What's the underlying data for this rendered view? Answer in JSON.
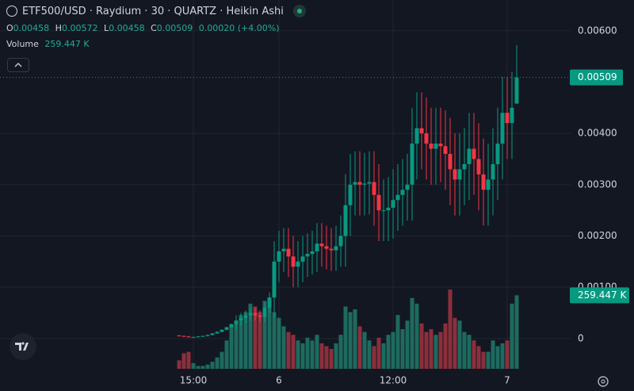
{
  "chart_data": {
    "type": "candlestick",
    "title": "ETF500/USD · Raydium · 30 · QUARTZ · Heikin Ashi",
    "ohlc_labels": [
      "O",
      "H",
      "L",
      "C"
    ],
    "change": "0.00020 (+4.00%)",
    "volume_title": "Volume",
    "up_color": "#089981",
    "down_color": "#f23645",
    "volume_up_color": "#1d6b5f",
    "volume_down_color": "#8c2f3c",
    "grid": true,
    "ylim": [
      -0.00059,
      0.0066
    ],
    "yticks": [
      {
        "value": 0,
        "label": "0"
      },
      {
        "value": 0.001,
        "label": "0.00100"
      },
      {
        "value": 0.002,
        "label": "0.00200"
      },
      {
        "value": 0.003,
        "label": "0.00300"
      },
      {
        "value": 0.004,
        "label": "0.00400"
      },
      {
        "value": 0.006,
        "label": "0.00600"
      }
    ],
    "categories": [
      null,
      null,
      null,
      "15:00",
      null,
      null,
      null,
      null,
      null,
      null,
      null,
      null,
      null,
      null,
      null,
      null,
      null,
      null,
      null,
      null,
      null,
      "6",
      null,
      null,
      null,
      null,
      null,
      null,
      null,
      null,
      null,
      null,
      null,
      null,
      null,
      null,
      null,
      null,
      null,
      null,
      null,
      null,
      null,
      null,
      null,
      "12:00",
      null,
      null,
      null,
      null,
      null,
      null,
      null,
      null,
      null,
      null,
      null,
      null,
      null,
      null,
      null,
      null,
      null,
      null,
      null,
      null,
      null,
      null,
      null,
      "7",
      null,
      null
    ],
    "open": [
      6e-05,
      5e-05,
      4e-05,
      3e-05,
      3e-05,
      4e-05,
      5e-05,
      7e-05,
      0.0001,
      0.00013,
      0.00017,
      0.00022,
      0.00028,
      0.00035,
      0.0004,
      0.00045,
      0.0005,
      0.00045,
      0.00042,
      0.0006,
      0.0008,
      0.0015,
      0.0017,
      0.00175,
      0.0016,
      0.0014,
      0.0015,
      0.0016,
      0.00165,
      0.0017,
      0.00185,
      0.0018,
      0.00175,
      0.00172,
      0.0018,
      0.002,
      0.0026,
      0.003,
      0.00305,
      0.003,
      0.00302,
      0.00305,
      0.0028,
      0.0025,
      0.0025,
      0.00255,
      0.0027,
      0.0028,
      0.0029,
      0.003,
      0.0038,
      0.0041,
      0.004,
      0.0038,
      0.0037,
      0.0038,
      0.00375,
      0.0036,
      0.0033,
      0.0031,
      0.0033,
      0.0034,
      0.0037,
      0.0035,
      0.0032,
      0.0029,
      0.0031,
      0.0034,
      0.0038,
      0.0044,
      0.0042,
      0.00458
    ],
    "high": [
      7e-05,
      6e-05,
      5e-05,
      4e-05,
      5e-05,
      6e-05,
      8e-05,
      0.00011,
      0.00014,
      0.00018,
      0.00023,
      0.00029,
      0.00045,
      0.0005,
      0.00055,
      0.0006,
      0.0006,
      0.00055,
      0.0007,
      0.0009,
      0.0019,
      0.0021,
      0.00215,
      0.00215,
      0.002,
      0.0019,
      0.002,
      0.00205,
      0.0021,
      0.00225,
      0.00225,
      0.0022,
      0.00215,
      0.0022,
      0.0024,
      0.0032,
      0.0036,
      0.00365,
      0.00365,
      0.00362,
      0.00365,
      0.00365,
      0.0034,
      0.0031,
      0.00315,
      0.0033,
      0.0034,
      0.0035,
      0.0036,
      0.0045,
      0.0048,
      0.0048,
      0.0047,
      0.0045,
      0.0045,
      0.0045,
      0.00445,
      0.0043,
      0.004,
      0.004,
      0.0041,
      0.0044,
      0.0044,
      0.0042,
      0.0039,
      0.0038,
      0.0041,
      0.0045,
      0.0051,
      0.0051,
      0.0052,
      0.00572
    ],
    "low": [
      4e-05,
      3e-05,
      2e-05,
      2e-05,
      2e-05,
      3e-05,
      4e-05,
      6e-05,
      9e-05,
      0.00012,
      0.00016,
      0.00021,
      0.00018,
      0.00025,
      0.0003,
      0.00035,
      0.00035,
      0.00032,
      0.00032,
      0.0005,
      0.0004,
      0.0011,
      0.0013,
      0.0012,
      0.001,
      0.001,
      0.0011,
      0.0012,
      0.00125,
      0.0013,
      0.0014,
      0.00135,
      0.00132,
      0.00132,
      0.0014,
      0.0014,
      0.002,
      0.0024,
      0.0024,
      0.0024,
      0.00242,
      0.0022,
      0.0019,
      0.0019,
      0.0019,
      0.00195,
      0.0021,
      0.0022,
      0.0023,
      0.0023,
      0.0031,
      0.0033,
      0.0031,
      0.003,
      0.003,
      0.00305,
      0.0029,
      0.0026,
      0.0024,
      0.0024,
      0.0026,
      0.0027,
      0.0028,
      0.0025,
      0.0022,
      0.0022,
      0.0024,
      0.0027,
      0.0031,
      0.0035,
      0.0035,
      0.00458
    ],
    "close": [
      5e-05,
      4e-05,
      3e-05,
      3e-05,
      4e-05,
      5e-05,
      7e-05,
      0.0001,
      0.00013,
      0.00017,
      0.00022,
      0.00028,
      0.00035,
      0.0004,
      0.00045,
      0.0005,
      0.00045,
      0.00042,
      0.0006,
      0.0008,
      0.0015,
      0.0017,
      0.00175,
      0.0016,
      0.0014,
      0.0015,
      0.0016,
      0.00165,
      0.0017,
      0.00185,
      0.0018,
      0.00175,
      0.00172,
      0.0018,
      0.002,
      0.0026,
      0.003,
      0.00305,
      0.003,
      0.00302,
      0.00305,
      0.0028,
      0.0025,
      0.0025,
      0.00255,
      0.0027,
      0.0028,
      0.0029,
      0.003,
      0.0038,
      0.0041,
      0.004,
      0.0038,
      0.0037,
      0.0038,
      0.00375,
      0.0036,
      0.0033,
      0.0031,
      0.0033,
      0.0034,
      0.0037,
      0.0035,
      0.0032,
      0.0029,
      0.0031,
      0.0034,
      0.0038,
      0.0044,
      0.0042,
      0.0045,
      0.00509
    ],
    "volume": {
      "values": [
        30000,
        55000,
        60000,
        20000,
        10000,
        10000,
        15000,
        25000,
        40000,
        60000,
        100000,
        150000,
        170000,
        190000,
        200000,
        230000,
        220000,
        200000,
        240000,
        220000,
        200000,
        180000,
        150000,
        130000,
        120000,
        100000,
        90000,
        110000,
        100000,
        120000,
        90000,
        80000,
        70000,
        90000,
        120000,
        220000,
        200000,
        210000,
        150000,
        130000,
        100000,
        80000,
        110000,
        90000,
        120000,
        130000,
        190000,
        140000,
        170000,
        250000,
        230000,
        160000,
        130000,
        140000,
        120000,
        130000,
        160000,
        280000,
        180000,
        170000,
        130000,
        120000,
        100000,
        80000,
        60000,
        60000,
        100000,
        80000,
        90000,
        100000,
        230000,
        259447
      ],
      "value_labels": [
        null,
        null,
        null,
        null,
        null,
        null,
        null,
        null,
        null,
        null,
        null,
        null,
        null,
        null,
        null,
        null,
        null,
        null,
        null,
        null,
        null,
        null,
        null,
        null,
        null,
        null,
        null,
        null,
        null,
        null,
        null,
        null,
        null,
        null,
        null,
        null,
        null,
        null,
        null,
        null,
        null,
        null,
        null,
        null,
        null,
        null,
        null,
        null,
        null,
        null,
        null,
        null,
        null,
        null,
        null,
        null,
        null,
        null,
        null,
        null,
        null,
        null,
        null,
        null,
        null,
        null,
        null,
        null,
        null,
        null,
        null,
        "259.447 K"
      ]
    }
  }
}
